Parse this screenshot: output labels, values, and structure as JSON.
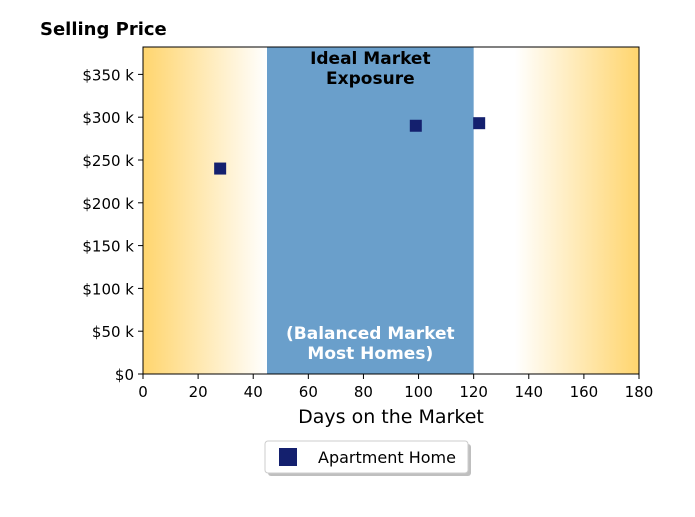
{
  "chart_data": {
    "type": "scatter",
    "title": "Selling Price",
    "xlabel": "Days on the Market",
    "ylabel": "",
    "xlim": [
      0,
      180
    ],
    "ylim": [
      0,
      382000
    ],
    "x_ticks": [
      0,
      20,
      40,
      60,
      80,
      100,
      120,
      140,
      160,
      180
    ],
    "x_tick_labels": [
      "0",
      "20",
      "40",
      "60",
      "80",
      "100",
      "120",
      "140",
      "160",
      "180"
    ],
    "y_ticks": [
      0,
      50000,
      100000,
      150000,
      200000,
      250000,
      300000,
      350000
    ],
    "y_tick_labels": [
      "$0",
      "$50 k",
      "$100 k",
      "$150 k",
      "$200 k",
      "$250 k",
      "$300 k",
      "$350 k"
    ],
    "grid": false,
    "legend_position": "bottom-center",
    "series": [
      {
        "name": "Apartment Home",
        "marker": "square",
        "color": "#14206e",
        "points": [
          {
            "x": 28,
            "y": 240000
          },
          {
            "x": 99,
            "y": 290000
          },
          {
            "x": 122,
            "y": 293000
          }
        ]
      }
    ],
    "regions": [
      {
        "x_start": 45,
        "x_end": 120,
        "color": "#6a9fcb"
      }
    ],
    "background_gradient": {
      "edge_color": "#ffd56e",
      "center_color": "#ffffff"
    },
    "annotations": [
      {
        "lines": [
          "Ideal Market",
          "Exposure"
        ],
        "color": "#000000",
        "placement": "top"
      },
      {
        "lines": [
          "(Balanced Market",
          "Most Homes)"
        ],
        "color": "#ffffff",
        "placement": "bottom"
      }
    ]
  }
}
